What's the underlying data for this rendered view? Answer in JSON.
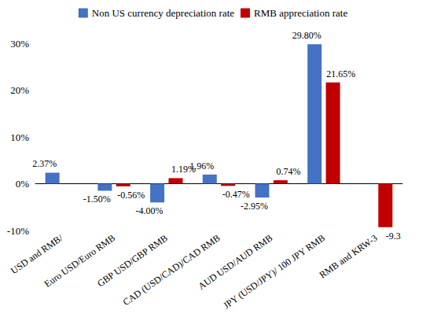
{
  "chart_data": {
    "type": "bar",
    "categories": [
      "USD and RMB/",
      "Euro USD/Euro RMB",
      "GBP USD/GBP RMB",
      "CAD (USD/CAD)/CAD RMB",
      "AUD USD/AUD RMB",
      "JPY (USD/JPY)/ 100 JPY RMB",
      "RMB and KRW-3"
    ],
    "series": [
      {
        "name": "Non US currency depreciation rate",
        "color": "#4472C4",
        "values": [
          2.37,
          -1.5,
          -4.0,
          1.96,
          -2.95,
          29.8,
          null
        ],
        "value_labels": [
          "2.37%",
          "-1.50%",
          "-4.00%",
          "1.96%",
          "-2.95%",
          "29.80%",
          null
        ]
      },
      {
        "name": "RMB appreciation rate",
        "color": "#C00000",
        "values": [
          null,
          -0.56,
          1.19,
          -0.47,
          0.74,
          21.65,
          -9.3
        ],
        "value_labels": [
          null,
          "-0.56%",
          "1.19%",
          "-0.47%",
          "0.74%",
          "21.65%",
          "-9.3"
        ]
      }
    ],
    "ylim": [
      -10,
      30
    ],
    "yticks": [
      {
        "value": -10,
        "label": "-10%"
      },
      {
        "value": 0,
        "label": "0%"
      },
      {
        "value": 10,
        "label": "10%"
      },
      {
        "value": 20,
        "label": "20%"
      },
      {
        "value": 30,
        "label": "30%"
      }
    ],
    "grid": false,
    "legend": "top",
    "data_labels": true
  }
}
